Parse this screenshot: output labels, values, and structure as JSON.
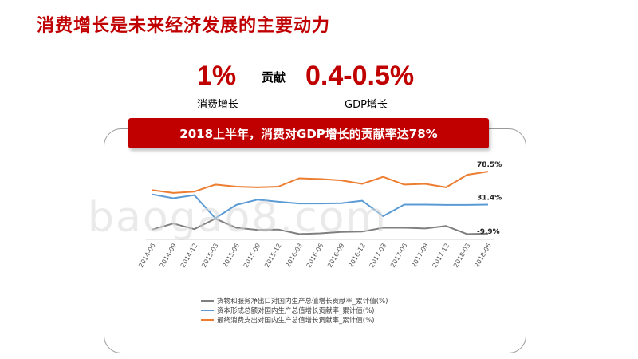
{
  "title": "消费增长是未来经济发展的主要动力",
  "stats": {
    "left_value": "1%",
    "left_label": "消费增长",
    "middle_word": "贡献",
    "right_value": "0.4-0.5%",
    "right_label": "GDP增长"
  },
  "banner": "2018上半年，消费对GDP增长的贡献率达78%",
  "watermark": "baogao8.com",
  "colors": {
    "accent": "#c00000",
    "series_gray": "#7f7f7f",
    "series_blue": "#5b9bd5",
    "series_orange": "#ed7d31"
  },
  "chart_data": {
    "type": "line",
    "categories": [
      "2014-06",
      "2014-09",
      "2014-12",
      "2015-03",
      "2015-06",
      "2015-09",
      "2015-12",
      "2016-03",
      "2016-06",
      "2016-09",
      "2016-12",
      "2017-03",
      "2017-06",
      "2017-09",
      "2017-12",
      "2018-03",
      "2018-06"
    ],
    "series": [
      {
        "name": "货物和服务净出口对国内生产总值增长贡献率_累计值(%)",
        "color": "#7f7f7f",
        "values": [
          -4.0,
          4.5,
          -3.5,
          11.5,
          -1.5,
          -4.5,
          -4.0,
          -10.5,
          -9.5,
          -7.5,
          -7.0,
          -1.5,
          -1.5,
          -2.5,
          1.0,
          -10.5,
          -9.9
        ]
      },
      {
        "name": "资本形成总额对国内生产总值增长贡献率_累计值(%)",
        "color": "#5b9bd5",
        "values": [
          46.0,
          40.5,
          45.0,
          12.0,
          31.0,
          38.5,
          35.5,
          33.0,
          33.0,
          33.5,
          37.0,
          15.0,
          31.5,
          31.5,
          31.0,
          31.0,
          31.4
        ]
      },
      {
        "name": "最终消费支出对国内生产总值增长贡献率_累计值(%)",
        "color": "#ed7d31",
        "values": [
          52.0,
          48.0,
          50.0,
          60.0,
          57.0,
          56.0,
          57.0,
          69.0,
          68.0,
          66.0,
          61.0,
          71.0,
          60.0,
          61.0,
          56.0,
          74.0,
          78.5
        ]
      }
    ],
    "end_labels": [
      "-9.9%",
      "31.4%",
      "78.5%"
    ],
    "ylim": [
      -18,
      90
    ],
    "grid": false,
    "legend_position": "bottom"
  }
}
